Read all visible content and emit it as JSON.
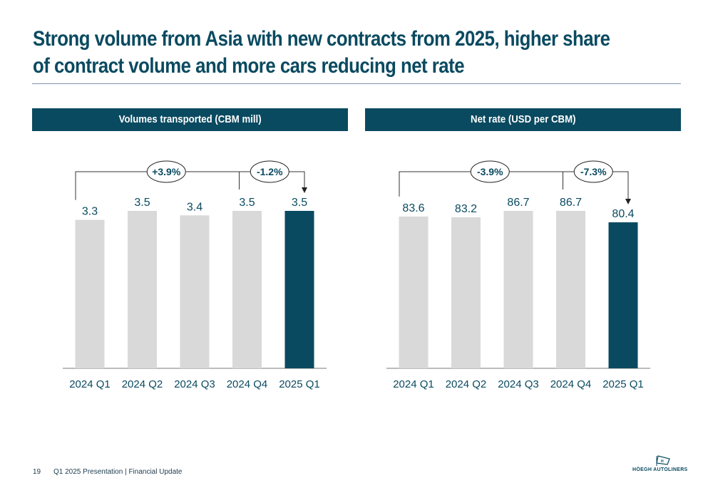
{
  "title_line1": "Strong volume from Asia with new contracts from 2025, higher share",
  "title_line2": "of contract volume and more cars reducing net rate",
  "colors": {
    "brand": "#0a4a60",
    "grey_bar": "#d9d9da",
    "rule": "#7f93ad"
  },
  "chart_data": [
    {
      "type": "bar",
      "title": "Volumes transported (CBM mill)",
      "categories": [
        "2024 Q1",
        "2024 Q2",
        "2024 Q3",
        "2024 Q4",
        "2025 Q1"
      ],
      "values": [
        3.3,
        3.5,
        3.4,
        3.5,
        3.5
      ],
      "labels": [
        "3.3",
        "3.5",
        "3.4",
        "3.5",
        "3.5"
      ],
      "highlight_index": 4,
      "annotations": [
        {
          "text": "+3.9%",
          "from": "2024 Q1",
          "to": "2025 Q1"
        },
        {
          "text": "-1.2%",
          "from": "2024 Q4",
          "to": "2025 Q1"
        }
      ]
    },
    {
      "type": "bar",
      "title": "Net rate (USD per CBM)",
      "categories": [
        "2024 Q1",
        "2024 Q2",
        "2024 Q3",
        "2024 Q4",
        "2025 Q1"
      ],
      "values": [
        83.6,
        83.2,
        86.7,
        86.7,
        80.4
      ],
      "labels": [
        "83.6",
        "83.2",
        "86.7",
        "86.7",
        "80.4"
      ],
      "highlight_index": 4,
      "annotations": [
        {
          "text": "-3.9%",
          "from": "2024 Q1",
          "to": "2025 Q1"
        },
        {
          "text": "-7.3%",
          "from": "2024 Q4",
          "to": "2025 Q1"
        }
      ]
    }
  ],
  "footer": {
    "page": "19",
    "text": "Q1 2025 Presentation | Financial Update"
  },
  "logo": {
    "text": "HÖEGH AUTOLINERS",
    "icon": "ship-flag-icon"
  }
}
